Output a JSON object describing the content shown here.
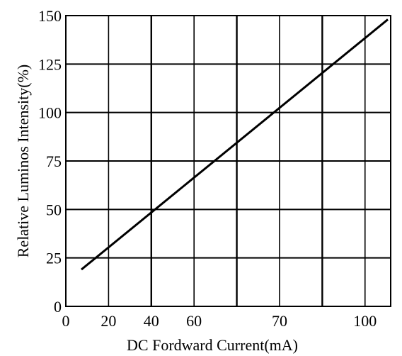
{
  "chart_data": {
    "type": "line",
    "xlabel": "DC Fordward Current(mA)",
    "ylabel": "Relative Luminos Intensity(%)",
    "ylim": [
      0,
      150
    ],
    "yticks": [
      0,
      25,
      50,
      75,
      100,
      125,
      150
    ],
    "x_tick_labels": [
      "0",
      "20",
      "40",
      "60",
      "70",
      "100"
    ],
    "grid": true,
    "series": [
      {
        "x": [
          5,
          100
        ],
        "y": [
          19,
          148
        ]
      }
    ]
  }
}
